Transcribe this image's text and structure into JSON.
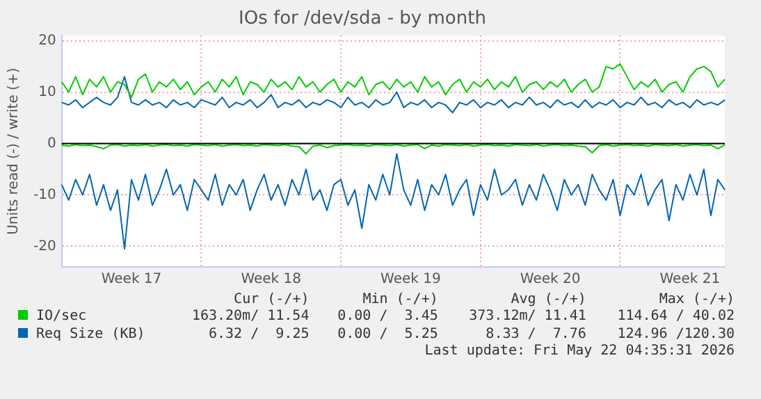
{
  "chart_data": {
    "type": "line",
    "title": "IOs for /dev/sda - by month",
    "ylabel": "Units read (-) / write (+)",
    "categories": [
      null,
      null,
      null,
      null,
      null,
      null,
      null,
      null,
      null,
      null,
      "Week 17",
      null,
      null,
      null,
      null,
      null,
      null,
      null,
      null,
      null,
      null,
      null,
      null,
      null,
      null,
      null,
      null,
      null,
      null,
      null,
      "Week 18",
      null,
      null,
      null,
      null,
      null,
      null,
      null,
      null,
      null,
      null,
      null,
      null,
      null,
      null,
      null,
      null,
      null,
      null,
      null,
      "Week 19",
      null,
      null,
      null,
      null,
      null,
      null,
      null,
      null,
      null,
      null,
      null,
      null,
      null,
      null,
      null,
      null,
      null,
      null,
      null,
      "Week 20",
      null,
      null,
      null,
      null,
      null,
      null,
      null,
      null,
      null,
      null,
      null,
      null,
      null,
      null,
      null,
      null,
      null,
      null,
      null,
      "Week 21",
      null,
      null,
      null,
      null,
      null
    ],
    "series": [
      {
        "name": "IO/sec",
        "color": "#00cc00",
        "values": [
          12,
          10,
          13,
          9.5,
          12.5,
          11,
          13,
          10,
          12,
          11.5,
          9,
          12.5,
          13.5,
          10,
          12,
          11,
          12.5,
          10.5,
          12,
          9.5,
          11,
          12,
          10,
          12.5,
          11,
          13,
          9.5,
          12,
          11.5,
          10,
          12.5,
          11,
          12,
          10.5,
          13,
          11,
          12,
          10,
          11.5,
          12.5,
          10,
          12,
          11,
          13,
          9.5,
          11.5,
          12,
          10.5,
          12.5,
          11,
          12,
          10,
          13,
          11,
          12,
          9.5,
          11.5,
          12.5,
          10,
          12,
          11,
          12.5,
          10.5,
          12,
          11,
          13,
          10,
          11.5,
          12,
          10.5,
          12,
          11,
          12.5,
          10,
          11.5,
          12.5,
          10,
          11,
          15,
          14.5,
          15.5,
          13,
          10.5,
          12,
          11,
          12.5,
          10,
          11.5,
          12,
          10,
          13,
          14.5,
          15,
          14,
          11,
          12.5
        ]
      },
      {
        "name": "Req Size (KB)",
        "color": "#0066b3",
        "values": [
          8,
          7.5,
          8.5,
          7,
          8,
          9,
          8,
          7.5,
          9,
          13,
          8,
          7.5,
          8.5,
          7.5,
          8,
          7,
          8.5,
          7.5,
          8,
          7,
          8.5,
          8,
          7.5,
          9,
          7,
          8,
          7.5,
          8.5,
          7,
          8,
          9.5,
          7,
          8,
          7.5,
          8.5,
          7,
          8,
          7.5,
          8.5,
          8,
          7,
          9,
          7.5,
          8,
          7,
          8.5,
          7.5,
          8,
          10,
          7,
          8,
          7.5,
          8.5,
          7,
          8,
          7.5,
          6,
          8,
          7.5,
          8.5,
          7,
          8,
          7.5,
          8.5,
          7,
          8,
          7.5,
          9,
          7.5,
          8,
          7,
          8.5,
          7.5,
          8,
          7,
          8.5,
          7,
          8,
          7.5,
          8.5,
          7,
          8,
          7.5,
          9,
          7.5,
          8,
          7,
          8.5,
          7.5,
          8,
          7,
          8.5,
          7.5,
          8,
          7.5,
          8.5
        ]
      },
      {
        "color": "#00cc00",
        "values": [
          -0.3,
          -0.5,
          -0.2,
          -0.4,
          -0.3,
          -0.6,
          -1,
          -0.3,
          -0.2,
          -0.5,
          -0.3,
          -0.4,
          -0.2,
          -0.5,
          -0.3,
          -0.2,
          -0.4,
          -0.3,
          -0.5,
          -0.2,
          -0.3,
          -0.4,
          -0.2,
          -0.5,
          -0.3,
          -0.2,
          -0.4,
          -0.3,
          -0.5,
          -0.2,
          -0.3,
          -0.4,
          -0.2,
          -0.5,
          -0.6,
          -2,
          -0.5,
          -0.3,
          -0.8,
          -0.4,
          -0.3,
          -0.2,
          -0.4,
          -0.3,
          -0.5,
          -0.2,
          -0.3,
          -0.4,
          -0.2,
          -0.5,
          -0.3,
          -0.2,
          -1,
          -0.3,
          -0.5,
          -0.2,
          -0.3,
          -0.4,
          -0.2,
          -0.5,
          -0.3,
          -0.2,
          -0.4,
          -0.3,
          -0.5,
          -0.2,
          -0.3,
          -0.4,
          -0.2,
          -0.5,
          -0.3,
          -0.2,
          -0.4,
          -0.3,
          -0.5,
          -0.6,
          -1.8,
          -0.4,
          -0.2,
          -0.5,
          -0.3,
          -0.2,
          -0.4,
          -0.3,
          -0.5,
          -0.2,
          -0.3,
          -0.4,
          -0.2,
          -0.5,
          -0.3,
          -0.2,
          -0.4,
          -0.3,
          -1,
          -0.3
        ]
      },
      {
        "color": "#0066b3",
        "values": [
          -8,
          -11,
          -7,
          -10,
          -6,
          -12,
          -8,
          -13,
          -9,
          -20.5,
          -7,
          -11,
          -6,
          -12,
          -9,
          -5,
          -10,
          -8,
          -13,
          -7,
          -9,
          -11,
          -6,
          -12,
          -8,
          -10,
          -7,
          -13,
          -9,
          -6,
          -11,
          -8,
          -12,
          -7,
          -10,
          -5,
          -11,
          -9,
          -13,
          -8,
          -7,
          -12,
          -9,
          -16.5,
          -8,
          -11,
          -6,
          -10,
          -2,
          -9,
          -12,
          -7,
          -13,
          -8,
          -10,
          -6,
          -12,
          -9,
          -7,
          -14,
          -8,
          -11,
          -5,
          -10,
          -9,
          -7,
          -12,
          -8,
          -11,
          -6,
          -9,
          -13,
          -7,
          -10,
          -8,
          -12,
          -6,
          -9,
          -11,
          -7,
          -14,
          -8,
          -10,
          -6,
          -12,
          -9,
          -7,
          -15,
          -8,
          -11,
          -6,
          -10,
          -5,
          -14,
          -7,
          -9
        ]
      }
    ],
    "ylim": [
      -24,
      21
    ],
    "yticks": [
      -20,
      -10,
      0,
      10,
      20
    ],
    "ref_lines": [
      {
        "axis": "y",
        "value": 0,
        "color": "#000000"
      }
    ],
    "grid": true,
    "legend": "bottom left",
    "marker": "none",
    "line_style": "solid",
    "annotations": [
      "Cur (-/+)",
      "Min (-/+)",
      "Avg (-/+)",
      "Max (-/+)",
      "163.20m/ 11.54",
      "0.00 /  3.45",
      "373.12m/ 11.41",
      "114.64 / 40.02",
      "6.32 /  9.25",
      "0.00 /  5.25",
      "8.33 /  7.76",
      "124.96 /120.30",
      "Last update: Fri May 22 04:35:31 2026"
    ]
  }
}
